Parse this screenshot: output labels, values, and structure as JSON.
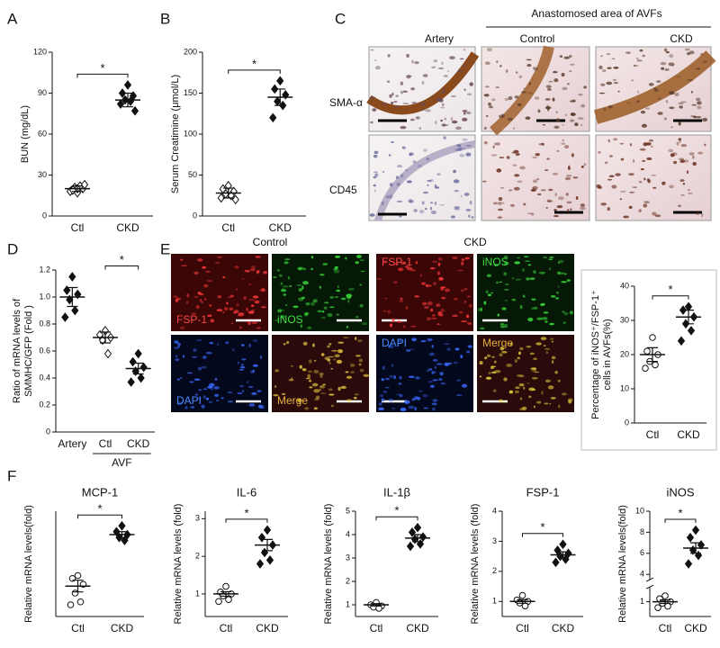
{
  "panel_labels": [
    "A",
    "B",
    "C",
    "D",
    "E",
    "F"
  ],
  "panel_c": {
    "column_header": "Anastomosed area of AVFs",
    "columns": [
      "Artery",
      "Control",
      "CKD"
    ],
    "rows": [
      "SMA-α",
      "CD45"
    ]
  },
  "panel_e": {
    "groups": [
      "Control",
      "CKD"
    ],
    "channels": [
      "FSP-1",
      "iNOS",
      "DAPI",
      "Merge"
    ]
  },
  "chart_data": [
    {
      "type": "dot",
      "ylabel": [
        "BUN (mg/dL)"
      ],
      "categories": [
        "Ctl",
        "CKD"
      ],
      "points": [
        [
          17,
          19,
          20,
          21,
          22,
          18,
          23,
          20,
          19
        ],
        [
          96,
          90,
          88,
          85,
          84,
          82,
          77
        ]
      ],
      "means": [
        20,
        85
      ],
      "errors": [
        2,
        5
      ],
      "markers": [
        "diamond",
        "diamond"
      ],
      "fills": [
        "open",
        "filled"
      ],
      "significance": {
        "label": "*",
        "between": [
          0,
          1
        ]
      },
      "ylim": [
        0,
        120
      ],
      "yticks": [
        0,
        30,
        60,
        90,
        120
      ]
    },
    {
      "type": "dot",
      "ylabel": [
        "Serum Creatimine (μmol/L)"
      ],
      "categories": [
        "Ctl",
        "CKD"
      ],
      "points": [
        [
          37,
          33,
          30,
          27,
          25,
          22,
          20
        ],
        [
          165,
          155,
          148,
          140,
          135,
          120
        ]
      ],
      "means": [
        28,
        145
      ],
      "errors": [
        6,
        10
      ],
      "markers": [
        "diamond",
        "diamond"
      ],
      "fills": [
        "open",
        "filled"
      ],
      "significance": {
        "label": "*",
        "between": [
          0,
          1
        ]
      },
      "ylim": [
        0,
        200
      ],
      "yticks": [
        0,
        50,
        100,
        150,
        200
      ]
    },
    {
      "type": "dot",
      "ylabel": [
        "Ratio of mRNA levels of",
        "SMMHC/GFP (Fold )"
      ],
      "categories": [
        "Artery",
        "Ctl",
        "CKD"
      ],
      "group_label": {
        "label": "AVF",
        "span": [
          1,
          2
        ]
      },
      "points": [
        [
          1.15,
          1.05,
          1.02,
          0.98,
          0.9,
          0.85
        ],
        [
          0.75,
          0.72,
          0.7,
          0.68,
          0.58
        ],
        [
          0.58,
          0.52,
          0.48,
          0.45,
          0.4,
          0.37
        ]
      ],
      "means": [
        1.0,
        0.7,
        0.47
      ],
      "errors": [
        0.07,
        0.04,
        0.04
      ],
      "markers": [
        "diamond",
        "diamond",
        "diamond"
      ],
      "fills": [
        "filled",
        "open",
        "filled"
      ],
      "significance": {
        "label": "*",
        "between": [
          1,
          2
        ]
      },
      "ylim": [
        0,
        1.2
      ],
      "yticks": [
        0,
        0.2,
        0.4,
        0.6,
        0.8,
        {
          "value": 1,
          "label": "1.0"
        },
        1.2
      ]
    },
    {
      "type": "dot",
      "ylabel": [
        "Percentage of iNOS⁺/FSP-1⁺",
        "cells in AVFs(%)"
      ],
      "categories": [
        "Ctl",
        "CKD"
      ],
      "points": [
        [
          25,
          21,
          20,
          18,
          17,
          16
        ],
        [
          34,
          33,
          31,
          29,
          27,
          24
        ]
      ],
      "means": [
        20,
        31
      ],
      "errors": [
        2,
        2
      ],
      "markers": [
        "circle",
        "diamond"
      ],
      "fills": [
        "open",
        "filled"
      ],
      "significance": {
        "label": "*",
        "between": [
          0,
          1
        ]
      },
      "ylim": [
        0,
        40
      ],
      "yticks": [
        0,
        10,
        20,
        30,
        40
      ]
    },
    {
      "type": "dot",
      "title": "MCP-1",
      "ylabel": [
        "Relative mRNA levels(fold)"
      ],
      "categories": [
        "Ctl",
        "CKD"
      ],
      "points": [
        [
          1.2,
          1.15,
          1.05,
          0.9,
          0.75,
          0.7
        ],
        [
          2.05,
          1.95,
          1.9,
          1.85,
          1.8
        ]
      ],
      "means": [
        1.02,
        1.9
      ],
      "errors": [
        0.1,
        0.05
      ],
      "markers": [
        "circle",
        "diamond"
      ],
      "fills": [
        "open",
        "filled"
      ],
      "significance": {
        "label": "*",
        "between": [
          0,
          1
        ]
      },
      "ylim": [
        0.5,
        2.3
      ],
      "yticks": []
    },
    {
      "type": "dot",
      "title": "IL-6",
      "ylabel": [
        "Relative mRNA levels (fold)"
      ],
      "categories": [
        "Ctl",
        "CKD"
      ],
      "points": [
        [
          1.2,
          1.05,
          1.0,
          0.95,
          0.85,
          0.8
        ],
        [
          2.7,
          2.5,
          2.3,
          2.1,
          1.9,
          1.8
        ]
      ],
      "means": [
        1.0,
        2.3
      ],
      "errors": [
        0.06,
        0.15
      ],
      "markers": [
        "circle",
        "diamond"
      ],
      "fills": [
        "open",
        "filled"
      ],
      "significance": {
        "label": "*",
        "between": [
          0,
          1
        ]
      },
      "ylim": [
        0.4,
        3.2
      ],
      "yticks": [
        1,
        2,
        3
      ]
    },
    {
      "type": "dot",
      "title": "IL-1β",
      "ylabel": [
        "Relative mRNA levels (fold)"
      ],
      "categories": [
        "Ctl",
        "CKD"
      ],
      "points": [
        [
          1.1,
          1.0,
          0.95,
          0.9,
          0.85
        ],
        [
          4.3,
          4.1,
          3.9,
          3.8,
          3.6,
          3.5
        ]
      ],
      "means": [
        1.0,
        3.85
      ],
      "errors": [
        0.05,
        0.15
      ],
      "markers": [
        "circle",
        "diamond"
      ],
      "fills": [
        "open",
        "filled"
      ],
      "significance": {
        "label": "*",
        "between": [
          0,
          1
        ]
      },
      "ylim": [
        0.5,
        5
      ],
      "yticks": [
        1,
        2,
        3,
        4,
        5
      ]
    },
    {
      "type": "dot",
      "title": "FSP-1",
      "ylabel": [
        "Relative mRNA levels (fold)"
      ],
      "categories": [
        "Ctl",
        "CKD"
      ],
      "points": [
        [
          1.2,
          1.05,
          1.0,
          0.95,
          0.85
        ],
        [
          2.9,
          2.7,
          2.6,
          2.5,
          2.4,
          2.3
        ]
      ],
      "means": [
        1.0,
        2.55
      ],
      "errors": [
        0.06,
        0.1
      ],
      "markers": [
        "circle",
        "diamond"
      ],
      "fills": [
        "open",
        "filled"
      ],
      "significance": {
        "label": "*",
        "between": [
          0,
          1
        ]
      },
      "ylim": [
        0.5,
        4
      ],
      "yticks": [
        1,
        2,
        3,
        4
      ]
    },
    {
      "type": "dot",
      "title": "iNOS",
      "ylabel": [
        "Relative mRNA levels(fold)"
      ],
      "categories": [
        "Ctl",
        "CKD"
      ],
      "points": [
        [
          1.2,
          1.1,
          1.0,
          0.95,
          0.85,
          0.8
        ],
        [
          8.2,
          7.5,
          6.8,
          6.3,
          5.8,
          5.0
        ]
      ],
      "means": [
        1.0,
        6.5
      ],
      "errors": [
        0.06,
        0.5
      ],
      "markers": [
        "circle",
        "diamond"
      ],
      "fills": [
        "open",
        "filled"
      ],
      "significance": {
        "label": "*",
        "between": [
          0,
          1
        ]
      },
      "ylim": [
        0.5,
        10
      ],
      "y_break": [
        1.5,
        3.5
      ],
      "yticks": [
        1,
        4,
        6,
        8,
        10
      ]
    }
  ]
}
